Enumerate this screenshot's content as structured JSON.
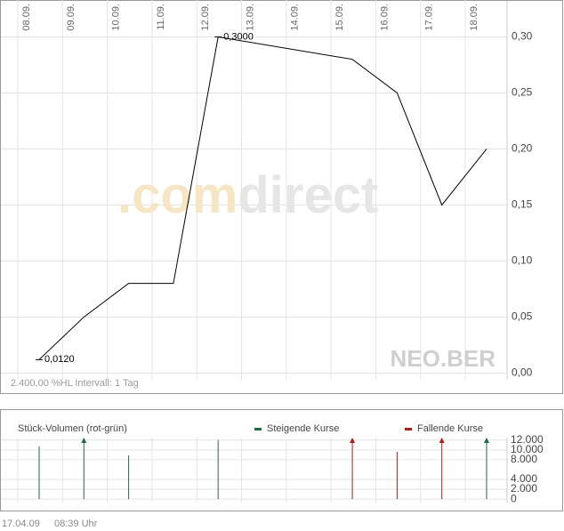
{
  "chart_data": [
    {
      "type": "line",
      "subtitle": "2.400,00 %HL Intervall: 1 Tag",
      "watermark": ".comdirect",
      "exchange": "NEO.BER",
      "categories": [
        "08.09.",
        "09.09.",
        "10.09.",
        "11.09.",
        "12.09.",
        "13.09.",
        "14.09.",
        "15.09.",
        "16.09.",
        "17.09.",
        "18.09."
      ],
      "series": [
        {
          "color": "#000000",
          "x": [
            "08.09.",
            "09.09.",
            "10.09.",
            "11.09.",
            "12.09.",
            "15.09.",
            "16.09.",
            "17.09.",
            "18.09."
          ],
          "values": [
            0.012,
            0.05,
            0.08,
            0.08,
            0.3,
            0.28,
            0.25,
            0.15,
            0.2
          ],
          "value_labels": [
            "0,0120",
            null,
            null,
            null,
            "0,3000",
            null,
            null,
            null,
            null
          ]
        }
      ],
      "ylim": [
        -0.006,
        0.325
      ],
      "yticks": [
        {
          "value": 0,
          "label": "0,00"
        },
        {
          "value": 0.05,
          "label": "0,05"
        },
        {
          "value": 0.1,
          "label": "0,10"
        },
        {
          "value": 0.15,
          "label": "0,15"
        },
        {
          "value": 0.2,
          "label": "0,20"
        },
        {
          "value": 0.25,
          "label": "0,25"
        },
        {
          "value": 0.3,
          "label": "0,30"
        }
      ],
      "grid": true
    },
    {
      "type": "bar",
      "title": "Stück-Volumen (rot-grün)",
      "legend": [
        {
          "name": "Steigende Kurse",
          "color": "#1f6b45"
        },
        {
          "name": "Fallende Kurse",
          "color": "#b01c1c"
        }
      ],
      "x": [
        "08.09.",
        "09.09.",
        "10.09.",
        "12.09.",
        "15.09.",
        "16.09.",
        "17.09.",
        "18.09."
      ],
      "values": [
        10700,
        13000,
        8900,
        12000,
        13000,
        9600,
        13000,
        13000
      ],
      "colors": [
        "#1f6b45",
        "#1f6b45",
        "#1f6b45",
        "#1f6b45",
        "#b01c1c",
        "#b01c1c",
        "#b01c1c",
        "#1f6b45"
      ],
      "ylim": [
        -700,
        12500
      ],
      "yticks": [
        0,
        {
          "value": 2000,
          "label": "2.000"
        },
        {
          "value": 4000,
          "label": "4.000"
        },
        {
          "value": 8000,
          "label": "8.000"
        },
        {
          "value": 10000,
          "label": "10.000"
        },
        {
          "value": 12000,
          "label": "12.000"
        }
      ],
      "grid": true
    }
  ],
  "footer": {
    "date": "17.04.09",
    "time": "08:39 Uhr"
  }
}
